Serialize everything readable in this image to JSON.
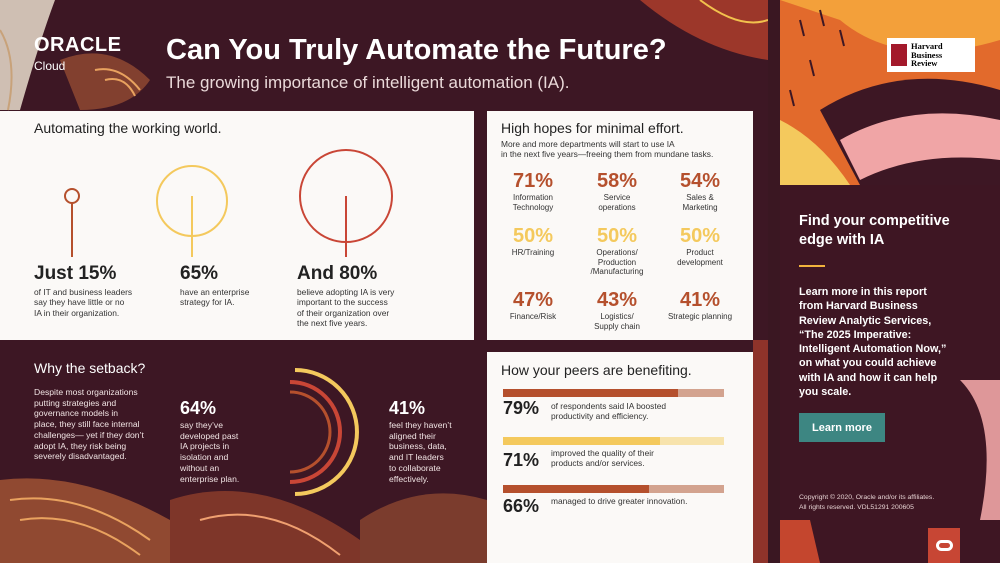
{
  "header": {
    "brand": "ORACLE",
    "brand_sub": "Cloud",
    "title": "Can You Truly Automate the Future?",
    "subtitle": "The growing importance of intelligent automation (IA)."
  },
  "working_world": {
    "title": "Automating the working world.",
    "stats": [
      {
        "value": "Just 15%",
        "desc_lines": [
          "of IT and business leaders",
          "say they have little or no",
          "IA in their organization."
        ]
      },
      {
        "value": "65%",
        "desc_lines": [
          "have an enterprise",
          "strategy for IA."
        ]
      },
      {
        "value": "And 80%",
        "desc_lines": [
          "believe adopting IA is very",
          "important to the success",
          "of their organization over",
          "the next five years."
        ]
      }
    ]
  },
  "high_hopes": {
    "title": "High hopes for minimal effort.",
    "intro_lines": [
      "More and more departments will start to use IA",
      "in the next five years—freeing them from mundane tasks."
    ],
    "departments": [
      {
        "pct": "71%",
        "label_lines": [
          "Information",
          "Technology"
        ]
      },
      {
        "pct": "58%",
        "label_lines": [
          "Service",
          "operations"
        ]
      },
      {
        "pct": "54%",
        "label_lines": [
          "Sales &",
          "Marketing"
        ]
      },
      {
        "pct": "50%",
        "label_lines": [
          "HR/Training"
        ]
      },
      {
        "pct": "50%",
        "label_lines": [
          "Operations/",
          "Production",
          "/Manufacturing"
        ]
      },
      {
        "pct": "50%",
        "label_lines": [
          "Product",
          "development"
        ]
      },
      {
        "pct": "47%",
        "label_lines": [
          "Finance/Risk"
        ]
      },
      {
        "pct": "43%",
        "label_lines": [
          "Logistics/",
          "Supply chain"
        ]
      },
      {
        "pct": "41%",
        "label_lines": [
          "Strategic planning"
        ]
      }
    ]
  },
  "setback": {
    "title": "Why the setback?",
    "text_lines": [
      "Despite most organizations",
      "putting strategies and",
      "governance models in",
      "place, they still face internal",
      "challenges— yet if they don’t",
      "adopt IA, they risk being",
      "severely disadvantaged."
    ],
    "left_value": "64%",
    "left_desc_lines": [
      "say they’ve",
      "developed past",
      "IA projects in",
      "isolation and",
      "without an",
      "enterprise plan."
    ],
    "right_value": "41%",
    "right_desc_lines": [
      "feel they haven’t",
      "aligned their",
      "business, data,",
      "and IT leaders",
      "to collaborate",
      "effectively."
    ]
  },
  "peers": {
    "title": "How your peers are benefiting.",
    "items": [
      {
        "pct": "79%",
        "fraction": 0.79,
        "desc_lines": [
          "of respondents said IA boosted",
          "productivity and efficiency."
        ]
      },
      {
        "pct": "71%",
        "fraction": 0.71,
        "desc_lines": [
          "improved the quality of their",
          "products and/or services."
        ]
      },
      {
        "pct": "66%",
        "fraction": 0.66,
        "desc_lines": [
          "managed to drive greater innovation."
        ]
      }
    ]
  },
  "sidebar": {
    "hbr_lines": [
      "Harvard",
      "Business",
      "Review"
    ],
    "heading_lines": [
      "Find your competitive",
      "edge with IA"
    ],
    "body_lines": [
      "Learn more in this report",
      "from Harvard Business",
      "Review Analytic Services,",
      "“The 2025 Imperative:",
      "Intelligent Automation Now,”",
      "on what you could achieve",
      "with IA and how it can help",
      "you scale."
    ],
    "button_label": "Learn more",
    "copyright_lines": [
      "Copyright © 2020, Oracle and/or its affiliates.",
      "All rights reserved. VDL51291 200605"
    ]
  },
  "colors": {
    "rust": "#b5502d",
    "red": "#c94636",
    "yellow": "#f4c95d",
    "tan": "#d3a38f",
    "pale_yellow": "#f7e3ac",
    "teal": "#3d8682",
    "maroon": "#3d1724"
  }
}
